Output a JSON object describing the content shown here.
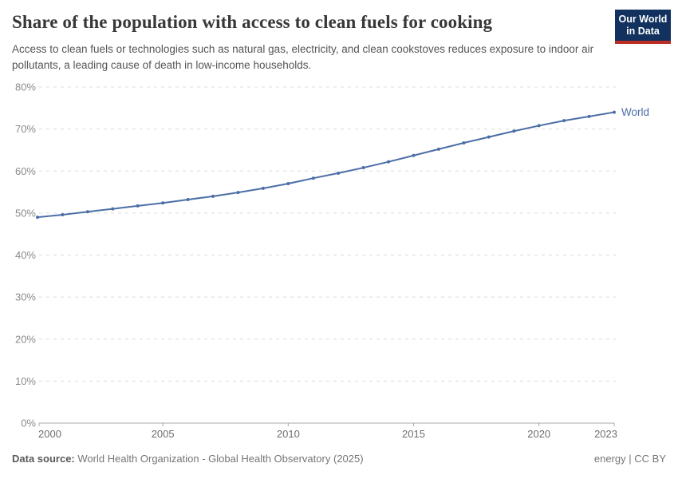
{
  "header": {
    "title": "Share of the population with access to clean fuels for cooking",
    "subtitle": "Access to clean fuels or technologies such as natural gas, electricity, and clean cookstoves reduces exposure to indoor air pollutants, a leading cause of death in low-income households.",
    "logo": {
      "line1": "Our World",
      "line2": "in Data",
      "bg_color": "#12315e",
      "bar_color": "#bc2e26"
    }
  },
  "chart_data": {
    "type": "line",
    "title": "Share of the population with access to clean fuels for cooking",
    "xlabel": "",
    "ylabel": "",
    "x": [
      2000,
      2001,
      2002,
      2003,
      2004,
      2005,
      2006,
      2007,
      2008,
      2009,
      2010,
      2011,
      2012,
      2013,
      2014,
      2015,
      2016,
      2017,
      2018,
      2019,
      2020,
      2021,
      2022,
      2023
    ],
    "series": [
      {
        "name": "World",
        "color": "#4c6ea6",
        "values": [
          49.0,
          49.6,
          50.3,
          51.0,
          51.7,
          52.4,
          53.2,
          54.0,
          54.9,
          55.9,
          57.0,
          58.3,
          59.5,
          60.8,
          62.2,
          63.7,
          65.2,
          66.7,
          68.1,
          69.5,
          70.8,
          72.0,
          73.0,
          74.0
        ]
      }
    ],
    "end_label": "World",
    "x_ticks": [
      2000,
      2005,
      2010,
      2015,
      2020,
      2023
    ],
    "y_ticks": [
      0,
      10,
      20,
      30,
      40,
      50,
      60,
      70,
      80
    ],
    "y_tick_suffix": "%",
    "xlim": [
      2000,
      2023
    ],
    "ylim": [
      0,
      80
    ],
    "grid": "horizontal-dashed",
    "legend_position": "end-of-line",
    "colors": {
      "gridline": "#dcdcdc",
      "axis_line": "#a8a8a8",
      "y_tick_label": "#8b8b8b",
      "x_tick_label": "#6e6e6e"
    }
  },
  "footer": {
    "source_label": "Data source:",
    "source_text": "World Health Organization - Global Health Observatory (2025)",
    "right_text": "energy | CC BY"
  }
}
